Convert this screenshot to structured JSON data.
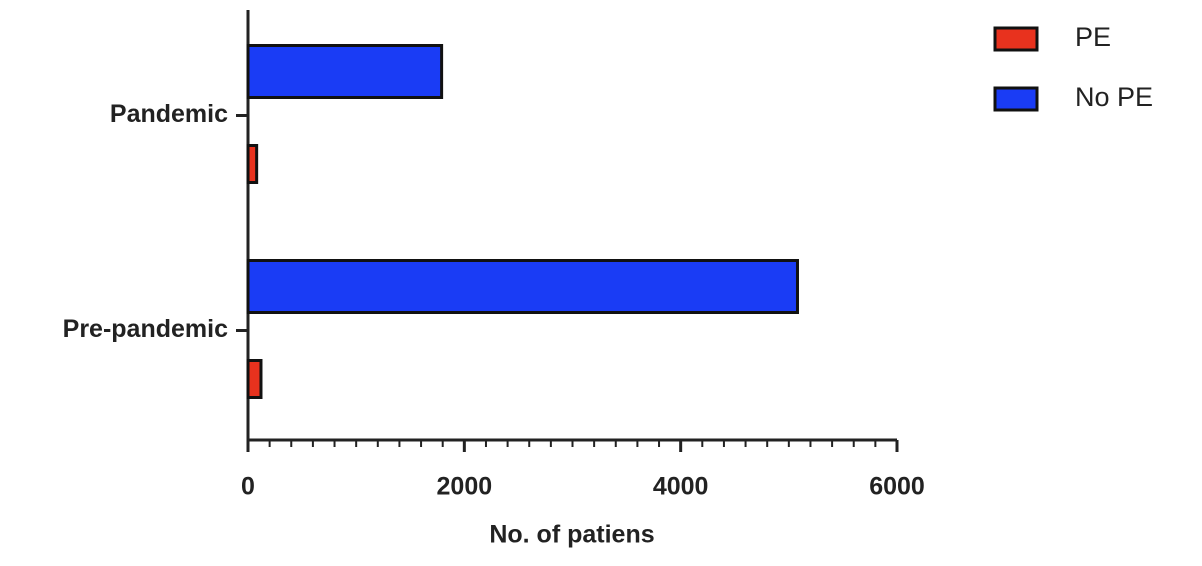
{
  "chart_data": {
    "type": "hbar",
    "xlabel": "No. of patiens",
    "categories": [
      "Pandemic",
      "Pre-pandemic"
    ],
    "series": [
      {
        "name": "PE",
        "color": "#e8321e",
        "values": [
          80,
          120
        ]
      },
      {
        "name": "No PE",
        "color": "#1a3cf5",
        "values": [
          1790,
          5080
        ]
      }
    ],
    "xlim": [
      0,
      6000
    ],
    "xticks": [
      0,
      2000,
      4000,
      6000
    ],
    "xticks_minor": [
      200,
      400,
      600,
      800,
      1000,
      1200,
      1400,
      1600,
      1800,
      2200,
      2400,
      2600,
      2800,
      3000,
      3200,
      3400,
      3600,
      3800,
      4200,
      4400,
      4600,
      4800,
      5000,
      5200,
      5400,
      5600,
      5800
    ],
    "legend": "upper right"
  }
}
